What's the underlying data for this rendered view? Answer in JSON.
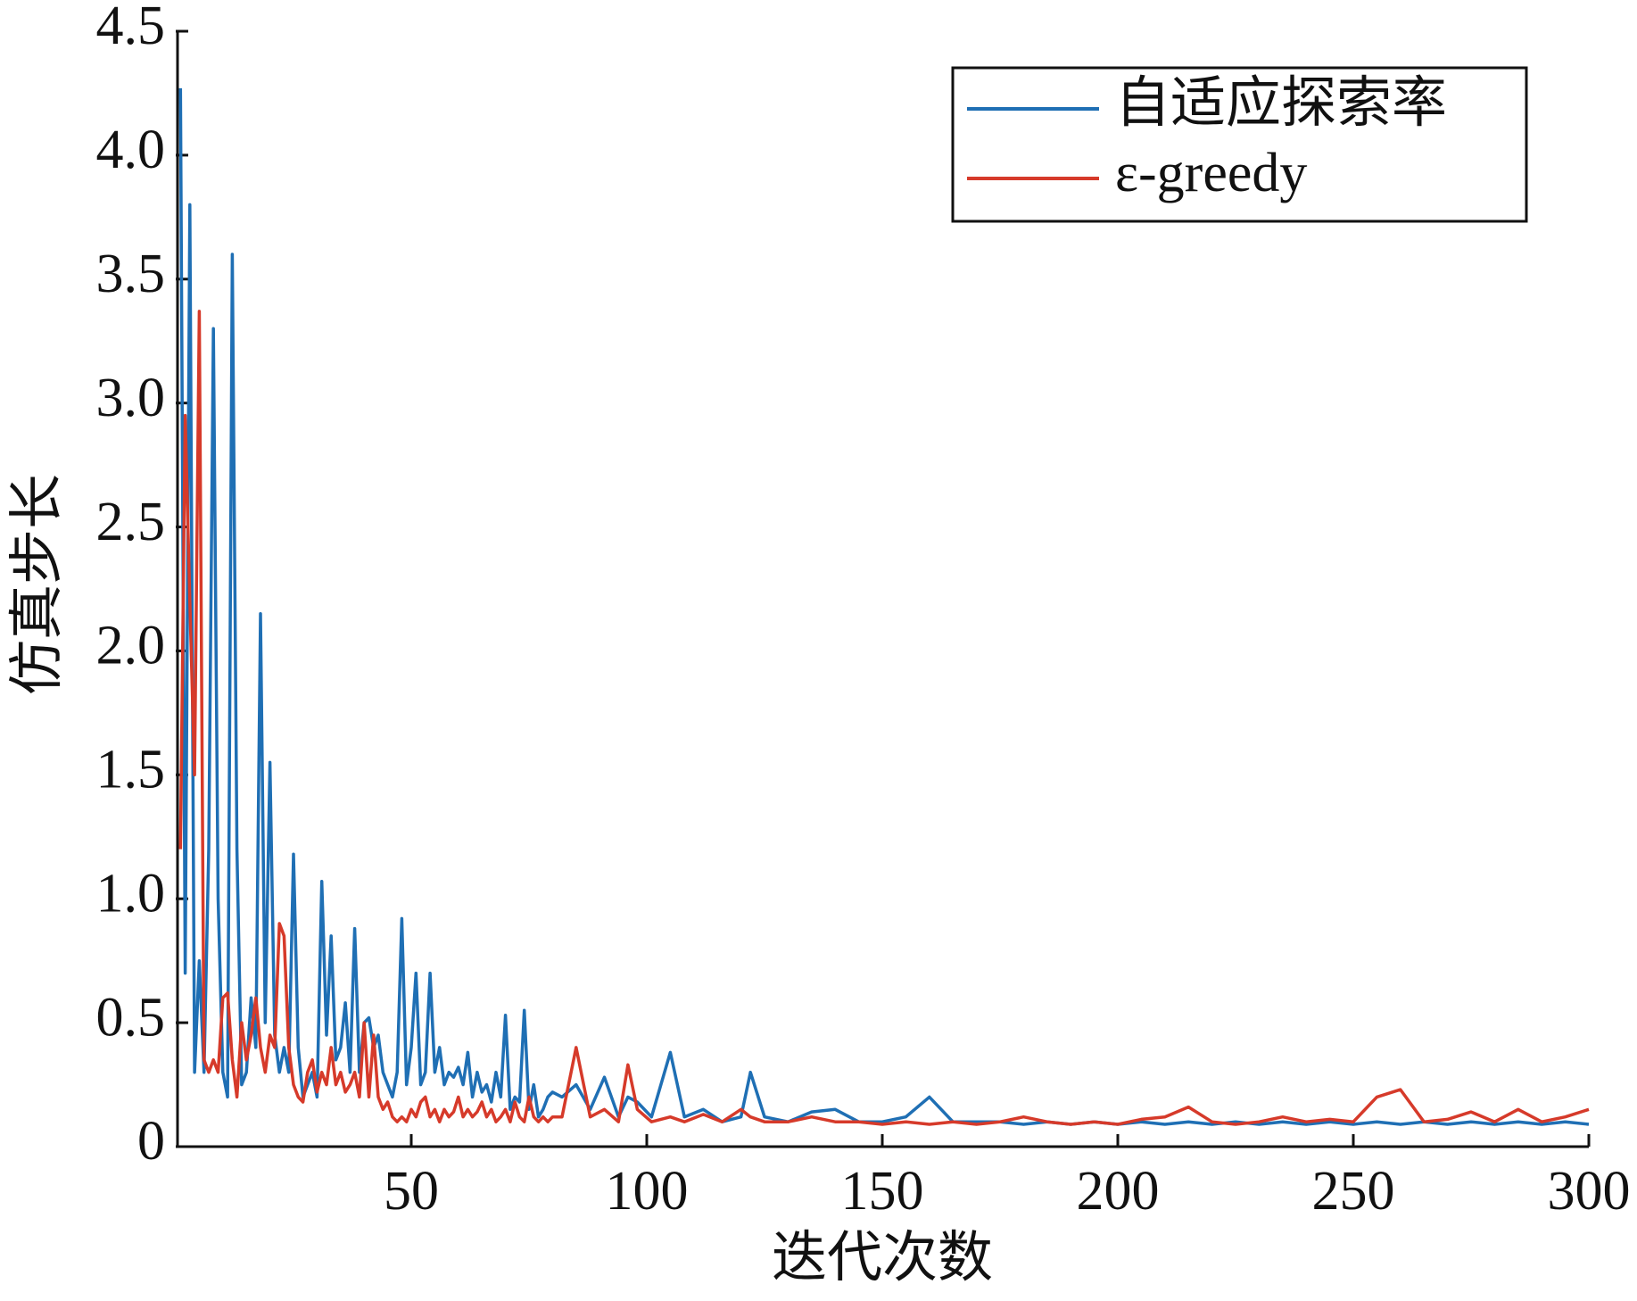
{
  "chart_data": {
    "type": "line",
    "xlabel": "迭代次数",
    "ylabel": "仿真步长",
    "x": [
      1,
      2,
      3,
      4,
      5,
      6,
      7,
      8,
      9,
      10,
      11,
      12,
      13,
      14,
      15,
      16,
      17,
      18,
      19,
      20,
      21,
      22,
      23,
      24,
      25,
      26,
      27,
      28,
      29,
      30,
      31,
      32,
      33,
      34,
      35,
      36,
      37,
      38,
      39,
      40,
      41,
      42,
      43,
      44,
      45,
      46,
      47,
      48,
      49,
      50,
      51,
      52,
      53,
      54,
      55,
      56,
      57,
      58,
      59,
      60,
      61,
      62,
      63,
      64,
      65,
      66,
      67,
      68,
      69,
      70,
      71,
      72,
      73,
      74,
      75,
      76,
      77,
      78,
      79,
      80,
      82,
      85,
      88,
      91,
      94,
      96,
      98,
      101,
      105,
      108,
      112,
      116,
      120,
      122,
      125,
      130,
      135,
      140,
      145,
      150,
      155,
      160,
      165,
      170,
      175,
      180,
      185,
      190,
      195,
      200,
      205,
      210,
      215,
      220,
      225,
      230,
      235,
      240,
      245,
      250,
      255,
      260,
      265,
      270,
      275,
      280,
      285,
      290,
      295,
      300
    ],
    "series": [
      {
        "name": "自适应探索率",
        "color": "#1f6fb4",
        "values": [
          4.27,
          0.7,
          3.8,
          0.3,
          0.75,
          0.3,
          1.2,
          3.3,
          1.0,
          0.3,
          0.2,
          3.6,
          1.2,
          0.25,
          0.3,
          0.6,
          0.4,
          2.15,
          0.5,
          1.55,
          0.45,
          0.3,
          0.4,
          0.3,
          1.18,
          0.4,
          0.2,
          0.25,
          0.3,
          0.2,
          1.07,
          0.45,
          0.85,
          0.35,
          0.4,
          0.58,
          0.3,
          0.88,
          0.3,
          0.5,
          0.52,
          0.4,
          0.45,
          0.3,
          0.25,
          0.2,
          0.3,
          0.92,
          0.25,
          0.4,
          0.7,
          0.25,
          0.3,
          0.7,
          0.3,
          0.4,
          0.25,
          0.3,
          0.28,
          0.32,
          0.25,
          0.38,
          0.2,
          0.3,
          0.22,
          0.25,
          0.18,
          0.3,
          0.2,
          0.53,
          0.15,
          0.2,
          0.18,
          0.55,
          0.15,
          0.25,
          0.12,
          0.15,
          0.2,
          0.22,
          0.2,
          0.25,
          0.15,
          0.28,
          0.12,
          0.2,
          0.18,
          0.12,
          0.38,
          0.12,
          0.15,
          0.1,
          0.12,
          0.3,
          0.12,
          0.1,
          0.14,
          0.15,
          0.1,
          0.1,
          0.12,
          0.2,
          0.1,
          0.1,
          0.1,
          0.09,
          0.1,
          0.09,
          0.1,
          0.09,
          0.1,
          0.09,
          0.1,
          0.09,
          0.1,
          0.09,
          0.1,
          0.09,
          0.1,
          0.09,
          0.1,
          0.09,
          0.1,
          0.09,
          0.1,
          0.09,
          0.1,
          0.09,
          0.1,
          0.09
        ]
      },
      {
        "name": "ε-greedy",
        "color": "#d63a2a",
        "values": [
          1.2,
          2.95,
          2.2,
          1.5,
          3.37,
          0.35,
          0.3,
          0.35,
          0.3,
          0.6,
          0.62,
          0.35,
          0.2,
          0.5,
          0.35,
          0.45,
          0.6,
          0.4,
          0.3,
          0.45,
          0.4,
          0.9,
          0.85,
          0.4,
          0.25,
          0.2,
          0.18,
          0.3,
          0.35,
          0.22,
          0.3,
          0.25,
          0.4,
          0.25,
          0.3,
          0.22,
          0.25,
          0.3,
          0.2,
          0.5,
          0.2,
          0.45,
          0.2,
          0.15,
          0.18,
          0.12,
          0.1,
          0.12,
          0.1,
          0.15,
          0.12,
          0.18,
          0.2,
          0.12,
          0.15,
          0.1,
          0.15,
          0.12,
          0.14,
          0.2,
          0.12,
          0.15,
          0.12,
          0.14,
          0.18,
          0.12,
          0.15,
          0.1,
          0.12,
          0.15,
          0.1,
          0.18,
          0.12,
          0.1,
          0.2,
          0.12,
          0.1,
          0.12,
          0.1,
          0.12,
          0.12,
          0.4,
          0.12,
          0.15,
          0.1,
          0.33,
          0.15,
          0.1,
          0.12,
          0.1,
          0.13,
          0.1,
          0.15,
          0.12,
          0.1,
          0.1,
          0.12,
          0.1,
          0.1,
          0.09,
          0.1,
          0.09,
          0.1,
          0.09,
          0.1,
          0.12,
          0.1,
          0.09,
          0.1,
          0.09,
          0.11,
          0.12,
          0.16,
          0.1,
          0.09,
          0.1,
          0.12,
          0.1,
          0.11,
          0.1,
          0.2,
          0.23,
          0.1,
          0.11,
          0.14,
          0.1,
          0.15,
          0.1,
          0.12,
          0.15
        ]
      }
    ],
    "xlim": [
      0,
      300
    ],
    "xticks": [
      50,
      100,
      150,
      200,
      250,
      300
    ],
    "ylim": [
      0,
      4.5
    ],
    "yticks": [
      0,
      0.5,
      {
        "value": 1,
        "label": "1.0"
      },
      1.5,
      {
        "value": 2,
        "label": "2.0"
      },
      2.5,
      {
        "value": 3,
        "label": "3.0"
      },
      3.5,
      {
        "value": 4,
        "label": "4.0"
      },
      4.5
    ],
    "legend": "upper right"
  }
}
